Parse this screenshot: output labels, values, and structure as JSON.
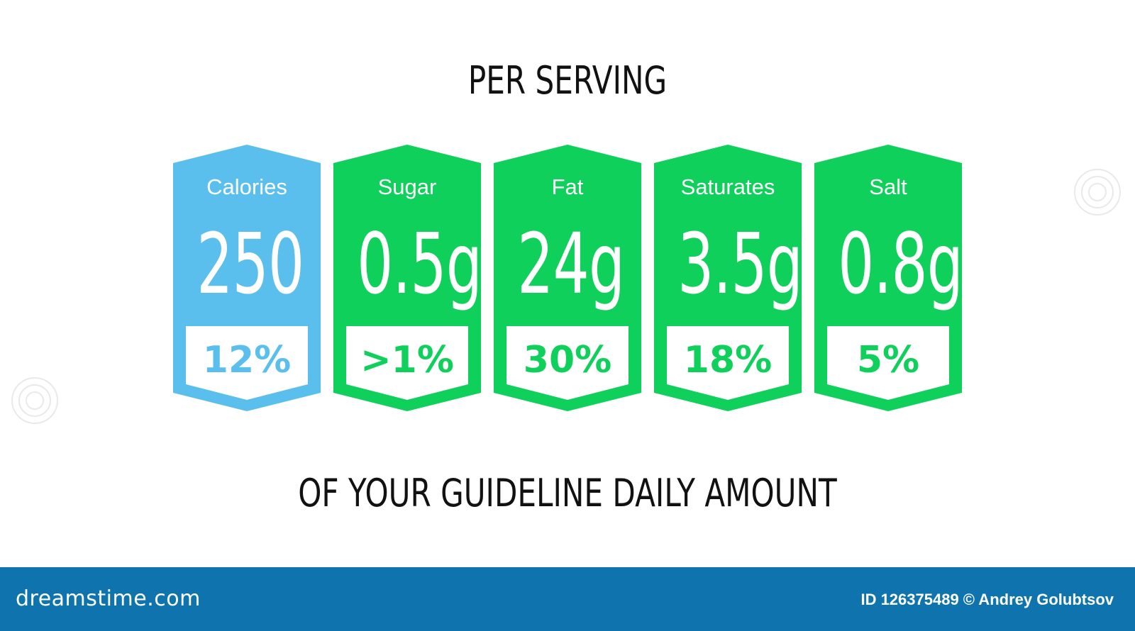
{
  "header": {
    "title": "PER SERVING"
  },
  "footer_caption": "OF YOUR GUIDELINE DAILY AMOUNT",
  "colors": {
    "calories": "#5bbfee",
    "nutrient": "#10d05c",
    "footer_bar": "#0f74ad"
  },
  "labels": [
    {
      "name": "Calories",
      "value": "250",
      "percent": "12%"
    },
    {
      "name": "Sugar",
      "value": "0.5g",
      "percent": ">1%"
    },
    {
      "name": "Fat",
      "value": "24g",
      "percent": "30%"
    },
    {
      "name": "Saturates",
      "value": "3.5g",
      "percent": "18%"
    },
    {
      "name": "Salt",
      "value": "0.8g",
      "percent": "5%"
    }
  ],
  "footer": {
    "brand": "dreamstime.com",
    "credit": "ID 126375489 © Andrey Golubtsov"
  }
}
